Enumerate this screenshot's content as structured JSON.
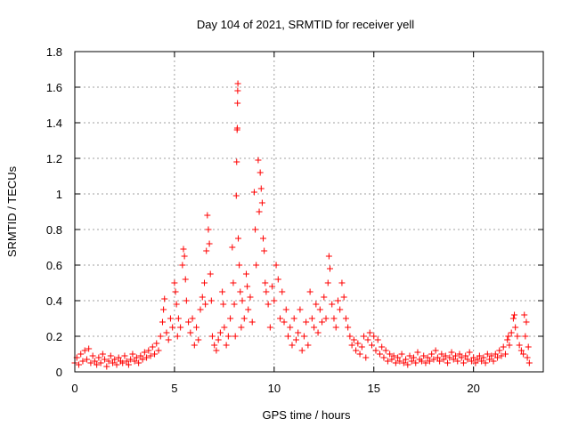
{
  "chart_data": {
    "type": "scatter",
    "title": "Day 104 of 2021, SRMTID for receiver yell",
    "xlabel": "GPS time / hours",
    "ylabel": "SRMTID / TECUs",
    "xlim": [
      0,
      23.5
    ],
    "ylim": [
      0,
      1.8
    ],
    "x_ticks": [
      0,
      5,
      10,
      15,
      20
    ],
    "x_tick_labels": [
      "0",
      "5",
      "10",
      "15",
      "20"
    ],
    "y_ticks": [
      0,
      0.2,
      0.4,
      0.6,
      0.8,
      1.0,
      1.2,
      1.4,
      1.6,
      1.8
    ],
    "y_tick_labels": [
      "0",
      "0.2",
      "0.4",
      "0.6",
      "0.8",
      "1",
      "1.2",
      "1.4",
      "1.6",
      "1.8"
    ],
    "grid": true,
    "marker": "+",
    "color": "#ff0000",
    "series": [
      {
        "name": "SRMTID",
        "points": [
          [
            0.0,
            0.05
          ],
          [
            0.1,
            0.08
          ],
          [
            0.2,
            0.04
          ],
          [
            0.3,
            0.1
          ],
          [
            0.4,
            0.06
          ],
          [
            0.5,
            0.12
          ],
          [
            0.6,
            0.07
          ],
          [
            0.7,
            0.13
          ],
          [
            0.8,
            0.05
          ],
          [
            0.9,
            0.09
          ],
          [
            1.0,
            0.06
          ],
          [
            1.1,
            0.04
          ],
          [
            1.2,
            0.08
          ],
          [
            1.3,
            0.05
          ],
          [
            1.4,
            0.1
          ],
          [
            1.5,
            0.07
          ],
          [
            1.6,
            0.03
          ],
          [
            1.7,
            0.06
          ],
          [
            1.8,
            0.09
          ],
          [
            1.9,
            0.05
          ],
          [
            2.0,
            0.07
          ],
          [
            2.1,
            0.04
          ],
          [
            2.2,
            0.08
          ],
          [
            2.3,
            0.06
          ],
          [
            2.4,
            0.05
          ],
          [
            2.5,
            0.09
          ],
          [
            2.6,
            0.06
          ],
          [
            2.7,
            0.04
          ],
          [
            2.8,
            0.07
          ],
          [
            2.9,
            0.1
          ],
          [
            3.0,
            0.06
          ],
          [
            3.1,
            0.08
          ],
          [
            3.2,
            0.05
          ],
          [
            3.3,
            0.09
          ],
          [
            3.4,
            0.07
          ],
          [
            3.5,
            0.11
          ],
          [
            3.6,
            0.08
          ],
          [
            3.7,
            0.12
          ],
          [
            3.8,
            0.09
          ],
          [
            3.9,
            0.14
          ],
          [
            4.0,
            0.1
          ],
          [
            4.1,
            0.16
          ],
          [
            4.2,
            0.12
          ],
          [
            4.3,
            0.2
          ],
          [
            4.4,
            0.28
          ],
          [
            4.45,
            0.35
          ],
          [
            4.5,
            0.41
          ],
          [
            4.6,
            0.22
          ],
          [
            4.7,
            0.18
          ],
          [
            4.8,
            0.3
          ],
          [
            4.9,
            0.25
          ],
          [
            5.0,
            0.5
          ],
          [
            5.05,
            0.45
          ],
          [
            5.1,
            0.38
          ],
          [
            5.15,
            0.2
          ],
          [
            5.2,
            0.3
          ],
          [
            5.3,
            0.25
          ],
          [
            5.4,
            0.6
          ],
          [
            5.45,
            0.69
          ],
          [
            5.5,
            0.65
          ],
          [
            5.55,
            0.52
          ],
          [
            5.6,
            0.4
          ],
          [
            5.7,
            0.28
          ],
          [
            5.8,
            0.22
          ],
          [
            5.9,
            0.3
          ],
          [
            6.0,
            0.15
          ],
          [
            6.1,
            0.25
          ],
          [
            6.2,
            0.18
          ],
          [
            6.3,
            0.35
          ],
          [
            6.4,
            0.42
          ],
          [
            6.5,
            0.5
          ],
          [
            6.55,
            0.38
          ],
          [
            6.6,
            0.68
          ],
          [
            6.65,
            0.88
          ],
          [
            6.7,
            0.8
          ],
          [
            6.75,
            0.72
          ],
          [
            6.8,
            0.55
          ],
          [
            6.85,
            0.4
          ],
          [
            6.9,
            0.2
          ],
          [
            7.0,
            0.15
          ],
          [
            7.1,
            0.12
          ],
          [
            7.2,
            0.18
          ],
          [
            7.3,
            0.22
          ],
          [
            7.4,
            0.45
          ],
          [
            7.45,
            0.38
          ],
          [
            7.5,
            0.25
          ],
          [
            7.6,
            0.15
          ],
          [
            7.7,
            0.2
          ],
          [
            7.8,
            0.3
          ],
          [
            7.9,
            0.7
          ],
          [
            7.95,
            0.5
          ],
          [
            8.0,
            0.38
          ],
          [
            8.05,
            0.2
          ],
          [
            8.1,
            0.99
          ],
          [
            8.12,
            1.18
          ],
          [
            8.14,
            1.36
          ],
          [
            8.15,
            1.37
          ],
          [
            8.16,
            1.51
          ],
          [
            8.17,
            1.58
          ],
          [
            8.18,
            1.62
          ],
          [
            8.2,
            0.75
          ],
          [
            8.25,
            0.6
          ],
          [
            8.3,
            0.45
          ],
          [
            8.35,
            0.25
          ],
          [
            8.4,
            0.4
          ],
          [
            8.5,
            0.3
          ],
          [
            8.6,
            0.55
          ],
          [
            8.65,
            0.48
          ],
          [
            8.7,
            0.35
          ],
          [
            8.8,
            0.42
          ],
          [
            8.9,
            0.28
          ],
          [
            9.0,
            1.01
          ],
          [
            9.05,
            0.8
          ],
          [
            9.1,
            0.6
          ],
          [
            9.2,
            1.19
          ],
          [
            9.25,
            0.9
          ],
          [
            9.3,
            1.12
          ],
          [
            9.35,
            1.03
          ],
          [
            9.4,
            0.95
          ],
          [
            9.45,
            0.75
          ],
          [
            9.5,
            0.68
          ],
          [
            9.55,
            0.5
          ],
          [
            9.6,
            0.45
          ],
          [
            9.7,
            0.38
          ],
          [
            9.8,
            0.25
          ],
          [
            9.9,
            0.48
          ],
          [
            10.0,
            0.4
          ],
          [
            10.1,
            0.6
          ],
          [
            10.2,
            0.52
          ],
          [
            10.3,
            0.3
          ],
          [
            10.4,
            0.45
          ],
          [
            10.5,
            0.28
          ],
          [
            10.6,
            0.35
          ],
          [
            10.7,
            0.2
          ],
          [
            10.8,
            0.25
          ],
          [
            10.9,
            0.15
          ],
          [
            11.0,
            0.3
          ],
          [
            11.1,
            0.18
          ],
          [
            11.2,
            0.22
          ],
          [
            11.3,
            0.35
          ],
          [
            11.4,
            0.12
          ],
          [
            11.5,
            0.2
          ],
          [
            11.6,
            0.28
          ],
          [
            11.7,
            0.15
          ],
          [
            11.8,
            0.45
          ],
          [
            11.9,
            0.3
          ],
          [
            12.0,
            0.25
          ],
          [
            12.1,
            0.38
          ],
          [
            12.2,
            0.22
          ],
          [
            12.3,
            0.35
          ],
          [
            12.4,
            0.28
          ],
          [
            12.5,
            0.42
          ],
          [
            12.6,
            0.3
          ],
          [
            12.7,
            0.5
          ],
          [
            12.75,
            0.65
          ],
          [
            12.8,
            0.58
          ],
          [
            12.9,
            0.38
          ],
          [
            13.0,
            0.3
          ],
          [
            13.1,
            0.25
          ],
          [
            13.2,
            0.4
          ],
          [
            13.3,
            0.35
          ],
          [
            13.4,
            0.5
          ],
          [
            13.5,
            0.42
          ],
          [
            13.6,
            0.3
          ],
          [
            13.7,
            0.25
          ],
          [
            13.8,
            0.2
          ],
          [
            13.9,
            0.15
          ],
          [
            14.0,
            0.18
          ],
          [
            14.1,
            0.12
          ],
          [
            14.2,
            0.16
          ],
          [
            14.3,
            0.1
          ],
          [
            14.4,
            0.14
          ],
          [
            14.5,
            0.2
          ],
          [
            14.6,
            0.08
          ],
          [
            14.7,
            0.18
          ],
          [
            14.8,
            0.22
          ],
          [
            14.9,
            0.15
          ],
          [
            15.0,
            0.2
          ],
          [
            15.1,
            0.12
          ],
          [
            15.2,
            0.18
          ],
          [
            15.3,
            0.1
          ],
          [
            15.4,
            0.14
          ],
          [
            15.5,
            0.08
          ],
          [
            15.6,
            0.12
          ],
          [
            15.7,
            0.06
          ],
          [
            15.8,
            0.1
          ],
          [
            15.9,
            0.07
          ],
          [
            16.0,
            0.09
          ],
          [
            16.1,
            0.05
          ],
          [
            16.2,
            0.08
          ],
          [
            16.3,
            0.06
          ],
          [
            16.4,
            0.1
          ],
          [
            16.5,
            0.05
          ],
          [
            16.6,
            0.07
          ],
          [
            16.7,
            0.04
          ],
          [
            16.8,
            0.09
          ],
          [
            16.9,
            0.06
          ],
          [
            17.0,
            0.08
          ],
          [
            17.1,
            0.05
          ],
          [
            17.2,
            0.11
          ],
          [
            17.3,
            0.07
          ],
          [
            17.4,
            0.06
          ],
          [
            17.5,
            0.09
          ],
          [
            17.6,
            0.05
          ],
          [
            17.7,
            0.08
          ],
          [
            17.8,
            0.06
          ],
          [
            17.9,
            0.1
          ],
          [
            18.0,
            0.07
          ],
          [
            18.1,
            0.12
          ],
          [
            18.2,
            0.08
          ],
          [
            18.3,
            0.06
          ],
          [
            18.4,
            0.1
          ],
          [
            18.5,
            0.07
          ],
          [
            18.6,
            0.09
          ],
          [
            18.7,
            0.05
          ],
          [
            18.8,
            0.08
          ],
          [
            18.9,
            0.11
          ],
          [
            19.0,
            0.07
          ],
          [
            19.1,
            0.09
          ],
          [
            19.2,
            0.06
          ],
          [
            19.3,
            0.1
          ],
          [
            19.4,
            0.08
          ],
          [
            19.5,
            0.05
          ],
          [
            19.6,
            0.09
          ],
          [
            19.7,
            0.07
          ],
          [
            19.8,
            0.11
          ],
          [
            19.9,
            0.06
          ],
          [
            20.0,
            0.08
          ],
          [
            20.1,
            0.05
          ],
          [
            20.2,
            0.07
          ],
          [
            20.3,
            0.09
          ],
          [
            20.4,
            0.06
          ],
          [
            20.5,
            0.08
          ],
          [
            20.6,
            0.05
          ],
          [
            20.7,
            0.1
          ],
          [
            20.8,
            0.07
          ],
          [
            20.9,
            0.09
          ],
          [
            21.0,
            0.06
          ],
          [
            21.1,
            0.1
          ],
          [
            21.2,
            0.08
          ],
          [
            21.3,
            0.12
          ],
          [
            21.4,
            0.09
          ],
          [
            21.5,
            0.14
          ],
          [
            21.6,
            0.1
          ],
          [
            21.7,
            0.18
          ],
          [
            21.75,
            0.2
          ],
          [
            21.8,
            0.15
          ],
          [
            21.9,
            0.22
          ],
          [
            22.0,
            0.3
          ],
          [
            22.05,
            0.32
          ],
          [
            22.1,
            0.25
          ],
          [
            22.2,
            0.2
          ],
          [
            22.3,
            0.15
          ],
          [
            22.4,
            0.12
          ],
          [
            22.5,
            0.1
          ],
          [
            22.55,
            0.32
          ],
          [
            22.6,
            0.2
          ],
          [
            22.65,
            0.28
          ],
          [
            22.7,
            0.08
          ],
          [
            22.75,
            0.14
          ],
          [
            22.8,
            0.05
          ]
        ]
      }
    ]
  }
}
